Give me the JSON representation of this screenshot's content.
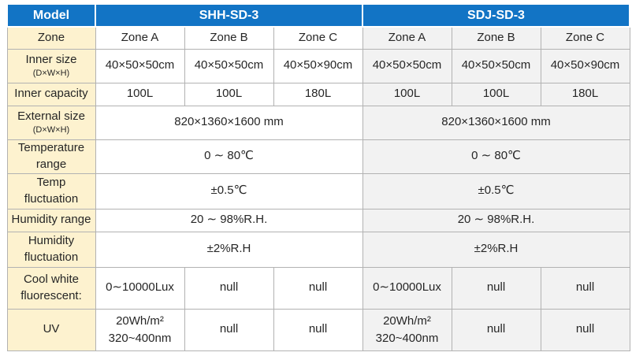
{
  "colors": {
    "header_bg": "#1274c5",
    "header_text": "#ffffff",
    "label_bg": "#fdf2cf",
    "sdj_column_bg": "#f2f2f2",
    "grid_line": "#b2b2b2",
    "body_text": "#262626"
  },
  "table": {
    "header": {
      "model_label": "Model",
      "models": [
        "SHH-SD-3",
        "SDJ-SD-3"
      ]
    },
    "rows": {
      "zone": {
        "label": "Zone",
        "shh": [
          "Zone A",
          "Zone B",
          "Zone C"
        ],
        "sdj": [
          "Zone A",
          "Zone B",
          "Zone C"
        ]
      },
      "inner_size": {
        "label": "Inner size",
        "sub": "(D×W×H)",
        "shh": [
          "40×50×50cm",
          "40×50×50cm",
          "40×50×90cm"
        ],
        "sdj": [
          "40×50×50cm",
          "40×50×50cm",
          "40×50×90cm"
        ]
      },
      "inner_capacity": {
        "label": "Inner capacity",
        "shh": [
          "100L",
          "100L",
          "180L"
        ],
        "sdj": [
          "100L",
          "100L",
          "180L"
        ]
      },
      "external_size": {
        "label": "External size",
        "sub": "(D×W×H)",
        "shh": "820×1360×1600 mm",
        "sdj": "820×1360×1600 mm"
      },
      "temperature_range": {
        "label": "Temperature range",
        "shh": "0 ∼ 80℃",
        "sdj": "0 ∼ 80℃"
      },
      "temp_fluctuation": {
        "label": "Temp fluctuation",
        "shh": "±0.5℃",
        "sdj": "±0.5℃"
      },
      "humidity_range": {
        "label": "Humidity range",
        "shh": "20 ∼ 98%R.H.",
        "sdj": "20 ∼ 98%R.H."
      },
      "humidity_fluctuation": {
        "label": "Humidity fluctuation",
        "shh": "±2%R.H",
        "sdj": "±2%R.H"
      },
      "cool_white": {
        "label": "Cool white fluorescent:",
        "shh": [
          "0∼10000Lux",
          "null",
          "null"
        ],
        "sdj": [
          "0∼10000Lux",
          "null",
          "null"
        ]
      },
      "uv": {
        "label": "UV",
        "shh": {
          "a_line1": "20Wh/m²",
          "a_line2": "320~400nm",
          "b": "null",
          "c": "null"
        },
        "sdj": {
          "a_line1": "20Wh/m²",
          "a_line2": "320~400nm",
          "b": "null",
          "c": "null"
        }
      }
    }
  }
}
